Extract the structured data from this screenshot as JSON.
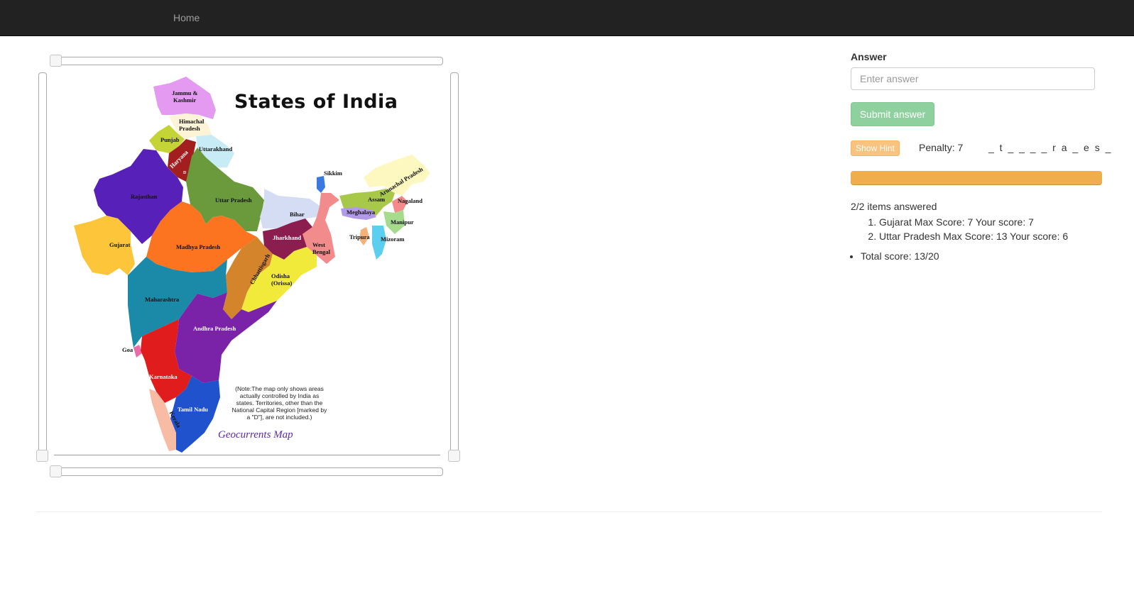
{
  "nav": {
    "home": "Home"
  },
  "map": {
    "title": "States of India",
    "note": "(Note:The map only shows areas actually controlled by India as states. Territories, other than the National Capital Region [marked by a \"D\"], are not included.)",
    "credit": "Geocurrents Map",
    "states": [
      "Jammu & Kashmir",
      "Himachal Pradesh",
      "Punjab",
      "Uttarakhand",
      "Haryana",
      "Rajasthan",
      "Uttar Pradesh",
      "Bihar",
      "Sikkim",
      "Arunachal Pradesh",
      "Assam",
      "Nagaland",
      "Meghalaya",
      "Manipur",
      "Tripura",
      "Mizoram",
      "Gujarat",
      "Madhya Pradesh",
      "Jharkhand",
      "West Bengal",
      "Chhattisgarh",
      "Odisha (Orissa)",
      "Maharashtra",
      "Andhra Pradesh",
      "Goa",
      "Karnataka",
      "Tamil Nadu",
      "Kerala",
      "D"
    ]
  },
  "answer": {
    "label": "Answer",
    "placeholder": "Enter answer",
    "submit": "Submit answer"
  },
  "hint": {
    "button": "Show Hint",
    "penalty": "Penalty: 7",
    "pattern": "_ t _ _ _ _ r a _ e s _"
  },
  "progress": {
    "percent": 100,
    "color": "#f0ad4e"
  },
  "results": {
    "summary": "2/2 items answered",
    "items": [
      "Gujarat Max Score: 7 Your score: 7",
      "Uttar Pradesh Max Score: 13 Your score: 6"
    ],
    "total": "Total score: 13/20"
  }
}
